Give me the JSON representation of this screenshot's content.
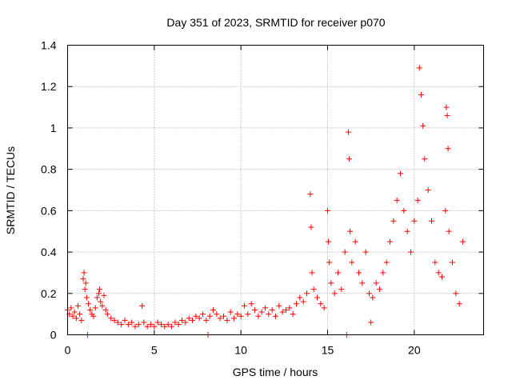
{
  "chart_data": {
    "type": "scatter",
    "title": "Day 351 of 2023, SRMTID for receiver p070",
    "xlabel": "GPS time / hours",
    "ylabel": "SRMTID / TECUs",
    "xlim": [
      0,
      24
    ],
    "ylim": [
      0,
      1.4
    ],
    "xticks": [
      0,
      5,
      10,
      15,
      20
    ],
    "xtick_labels": [
      "0",
      "5",
      "10",
      "15",
      "20"
    ],
    "yticks": [
      0,
      0.2,
      0.4,
      0.6,
      0.8,
      1,
      1.2,
      1.4
    ],
    "ytick_labels": [
      "0",
      "0.2",
      "0.4",
      "0.6",
      "0.8",
      "1",
      "1.2",
      "1.4"
    ],
    "grid": true,
    "marker": "plus",
    "color": "#ff0000",
    "series": [
      {
        "name": "SRMTID",
        "points": [
          [
            0.0,
            0.12
          ],
          [
            0.1,
            0.1
          ],
          [
            0.2,
            0.13
          ],
          [
            0.3,
            0.09
          ],
          [
            0.4,
            0.11
          ],
          [
            0.5,
            0.08
          ],
          [
            0.6,
            0.14
          ],
          [
            0.7,
            0.1
          ],
          [
            0.8,
            0.07
          ],
          [
            0.9,
            0.27
          ],
          [
            0.95,
            0.3
          ],
          [
            1.0,
            0.22
          ],
          [
            1.05,
            0.25
          ],
          [
            1.1,
            0.18
          ],
          [
            1.15,
            0.0
          ],
          [
            1.2,
            0.15
          ],
          [
            1.3,
            0.12
          ],
          [
            1.4,
            0.1
          ],
          [
            1.5,
            0.09
          ],
          [
            1.6,
            0.13
          ],
          [
            1.7,
            0.18
          ],
          [
            1.8,
            0.2
          ],
          [
            1.85,
            0.22
          ],
          [
            1.9,
            0.16
          ],
          [
            2.0,
            0.14
          ],
          [
            2.1,
            0.19
          ],
          [
            2.2,
            0.12
          ],
          [
            2.3,
            0.1
          ],
          [
            2.5,
            0.08
          ],
          [
            2.7,
            0.07
          ],
          [
            2.9,
            0.06
          ],
          [
            3.1,
            0.05
          ],
          [
            3.3,
            0.07
          ],
          [
            3.5,
            0.05
          ],
          [
            3.7,
            0.06
          ],
          [
            3.9,
            0.04
          ],
          [
            4.1,
            0.05
          ],
          [
            4.3,
            0.14
          ],
          [
            4.4,
            0.06
          ],
          [
            4.6,
            0.04
          ],
          [
            4.8,
            0.05
          ],
          [
            5.0,
            0.04
          ],
          [
            5.2,
            0.06
          ],
          [
            5.4,
            0.05
          ],
          [
            5.6,
            0.04
          ],
          [
            5.8,
            0.05
          ],
          [
            6.0,
            0.04
          ],
          [
            6.2,
            0.06
          ],
          [
            6.4,
            0.05
          ],
          [
            6.6,
            0.07
          ],
          [
            6.8,
            0.06
          ],
          [
            7.0,
            0.08
          ],
          [
            7.2,
            0.07
          ],
          [
            7.4,
            0.09
          ],
          [
            7.6,
            0.08
          ],
          [
            7.8,
            0.1
          ],
          [
            8.0,
            0.07
          ],
          [
            8.1,
            0.0
          ],
          [
            8.2,
            0.09
          ],
          [
            8.4,
            0.12
          ],
          [
            8.6,
            0.1
          ],
          [
            8.8,
            0.08
          ],
          [
            9.0,
            0.09
          ],
          [
            9.2,
            0.07
          ],
          [
            9.4,
            0.11
          ],
          [
            9.6,
            0.08
          ],
          [
            9.8,
            0.1
          ],
          [
            10.0,
            0.09
          ],
          [
            10.2,
            0.14
          ],
          [
            10.4,
            0.1
          ],
          [
            10.6,
            0.15
          ],
          [
            10.8,
            0.12
          ],
          [
            11.0,
            0.09
          ],
          [
            11.2,
            0.11
          ],
          [
            11.4,
            0.13
          ],
          [
            11.6,
            0.1
          ],
          [
            11.8,
            0.12
          ],
          [
            12.0,
            0.09
          ],
          [
            12.2,
            0.14
          ],
          [
            12.4,
            0.11
          ],
          [
            12.6,
            0.12
          ],
          [
            12.8,
            0.13
          ],
          [
            13.0,
            0.1
          ],
          [
            13.2,
            0.15
          ],
          [
            13.4,
            0.18
          ],
          [
            13.6,
            0.16
          ],
          [
            13.8,
            0.2
          ],
          [
            14.0,
            0.68
          ],
          [
            14.05,
            0.52
          ],
          [
            14.1,
            0.3
          ],
          [
            14.2,
            0.22
          ],
          [
            14.4,
            0.18
          ],
          [
            14.6,
            0.15
          ],
          [
            14.8,
            0.13
          ],
          [
            15.0,
            0.6
          ],
          [
            15.05,
            0.45
          ],
          [
            15.1,
            0.35
          ],
          [
            15.2,
            0.25
          ],
          [
            15.4,
            0.2
          ],
          [
            15.6,
            0.3
          ],
          [
            15.8,
            0.22
          ],
          [
            16.0,
            0.4
          ],
          [
            16.1,
            0.0
          ],
          [
            16.2,
            0.98
          ],
          [
            16.25,
            0.85
          ],
          [
            16.3,
            0.5
          ],
          [
            16.4,
            0.35
          ],
          [
            16.6,
            0.45
          ],
          [
            16.8,
            0.3
          ],
          [
            17.0,
            0.25
          ],
          [
            17.2,
            0.4
          ],
          [
            17.4,
            0.2
          ],
          [
            17.5,
            0.06
          ],
          [
            17.6,
            0.18
          ],
          [
            17.8,
            0.25
          ],
          [
            18.0,
            0.22
          ],
          [
            18.2,
            0.3
          ],
          [
            18.4,
            0.35
          ],
          [
            18.6,
            0.45
          ],
          [
            18.8,
            0.55
          ],
          [
            19.0,
            0.65
          ],
          [
            19.2,
            0.78
          ],
          [
            19.4,
            0.6
          ],
          [
            19.6,
            0.5
          ],
          [
            19.8,
            0.4
          ],
          [
            20.0,
            0.55
          ],
          [
            20.2,
            0.65
          ],
          [
            20.3,
            1.29
          ],
          [
            20.4,
            1.16
          ],
          [
            20.5,
            1.01
          ],
          [
            20.6,
            0.85
          ],
          [
            20.8,
            0.7
          ],
          [
            21.0,
            0.55
          ],
          [
            21.2,
            0.35
          ],
          [
            21.4,
            0.3
          ],
          [
            21.6,
            0.28
          ],
          [
            21.8,
            0.6
          ],
          [
            21.85,
            1.1
          ],
          [
            21.9,
            1.06
          ],
          [
            21.95,
            0.9
          ],
          [
            22.0,
            0.5
          ],
          [
            22.2,
            0.35
          ],
          [
            22.4,
            0.2
          ],
          [
            22.6,
            0.15
          ],
          [
            22.8,
            0.45
          ]
        ]
      }
    ]
  }
}
